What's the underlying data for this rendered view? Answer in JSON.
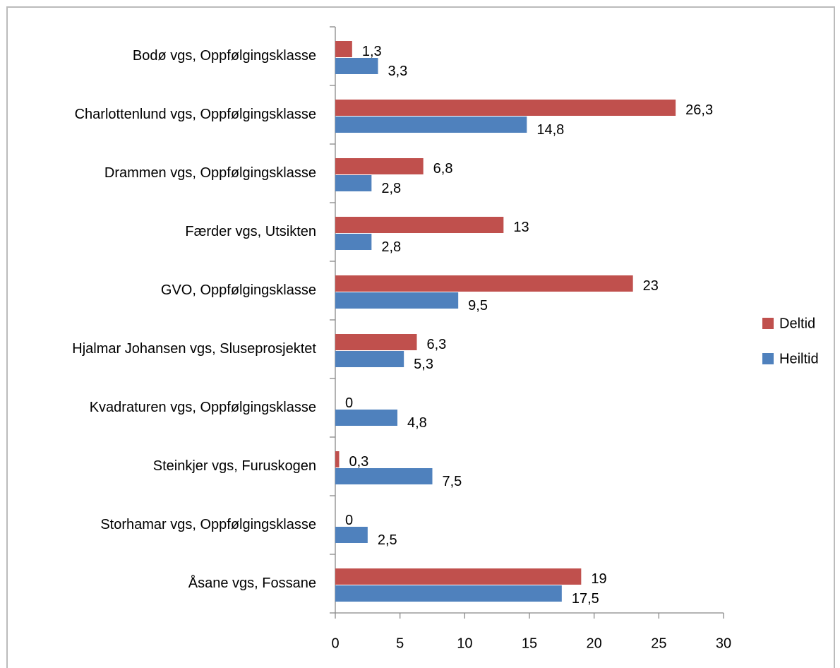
{
  "chart_data": {
    "type": "barh",
    "categories": [
      "Bodø vgs, Oppfølgingsklasse",
      "Charlottenlund vgs, Oppfølgingsklasse",
      "Drammen vgs, Oppfølgingsklasse",
      "Færder vgs, Utsikten",
      "GVO, Oppfølgingsklasse",
      "Hjalmar Johansen vgs, Sluseprosjektet",
      "Kvadraturen vgs, Oppfølgingsklasse",
      "Steinkjer vgs, Furuskogen",
      "Storhamar vgs, Oppfølgingsklasse",
      "Åsane vgs, Fossane"
    ],
    "series": [
      {
        "name": "Deltid",
        "color": "#c0504d",
        "values": [
          1.3,
          26.3,
          6.8,
          13,
          23,
          6.3,
          0,
          0.3,
          0,
          19
        ],
        "value_labels": [
          "1,3",
          "26,3",
          "6,8",
          "13",
          "23",
          "6,3",
          "0",
          "0,3",
          "0",
          "19"
        ]
      },
      {
        "name": "Heiltid",
        "color": "#4f81bd",
        "values": [
          3.3,
          14.8,
          2.8,
          2.8,
          9.5,
          5.3,
          4.8,
          7.5,
          2.5,
          17.5
        ],
        "value_labels": [
          "3,3",
          "14,8",
          "2,8",
          "2,8",
          "9,5",
          "5,3",
          "4,8",
          "7,5",
          "2,5",
          "17,5"
        ]
      }
    ],
    "xlim": [
      0,
      30
    ],
    "xticks": [
      0,
      5,
      10,
      15,
      20,
      25,
      30
    ],
    "legend": "right"
  }
}
